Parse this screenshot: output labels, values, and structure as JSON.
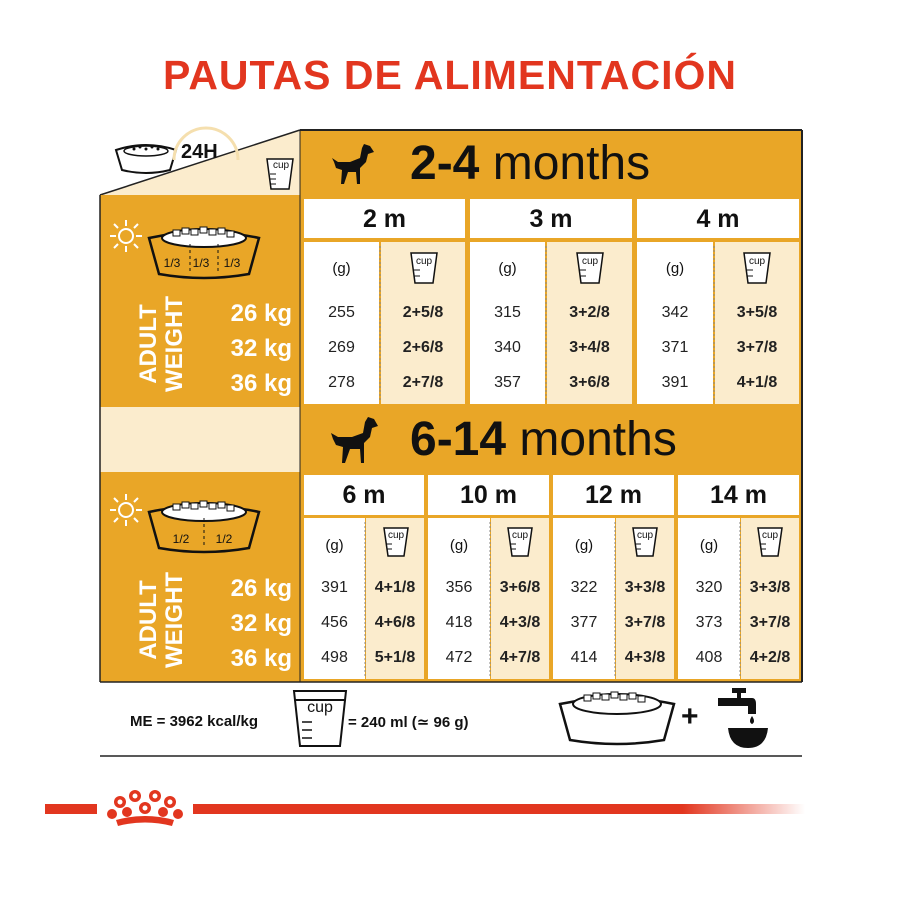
{
  "title": "PAUTAS DE ALIMENTACIÓN",
  "header_24h": "24H",
  "cup_word": "cup",
  "colors": {
    "orange": "#e9a627",
    "cream": "#fbeccd",
    "red": "#e2361f",
    "dark": "#1a1a1a"
  },
  "section1": {
    "range_number": "2-4",
    "range_word": "months",
    "fractions": [
      "1/3",
      "1/3",
      "1/3"
    ],
    "adult_label": [
      "ADULT",
      "WEIGHT"
    ],
    "weights": [
      "26 kg",
      "32 kg",
      "36 kg"
    ],
    "unit_g": "(g)",
    "columns": [
      {
        "month": "2 m",
        "grams": [
          "255",
          "269",
          "278"
        ],
        "cups": [
          "2+5/8",
          "2+6/8",
          "2+7/8"
        ]
      },
      {
        "month": "3 m",
        "grams": [
          "315",
          "340",
          "357"
        ],
        "cups": [
          "3+2/8",
          "3+4/8",
          "3+6/8"
        ]
      },
      {
        "month": "4 m",
        "grams": [
          "342",
          "371",
          "391"
        ],
        "cups": [
          "3+5/8",
          "3+7/8",
          "4+1/8"
        ]
      }
    ]
  },
  "section2": {
    "range_number": "6-14",
    "range_word": "months",
    "fractions": [
      "1/2",
      "1/2"
    ],
    "adult_label": [
      "ADULT",
      "WEIGHT"
    ],
    "weights": [
      "26 kg",
      "32 kg",
      "36 kg"
    ],
    "unit_g": "(g)",
    "columns": [
      {
        "month": "6 m",
        "grams": [
          "391",
          "456",
          "498"
        ],
        "cups": [
          "4+1/8",
          "4+6/8",
          "5+1/8"
        ]
      },
      {
        "month": "10 m",
        "grams": [
          "356",
          "418",
          "472"
        ],
        "cups": [
          "3+6/8",
          "4+3/8",
          "4+7/8"
        ]
      },
      {
        "month": "12 m",
        "grams": [
          "322",
          "377",
          "414"
        ],
        "cups": [
          "3+3/8",
          "3+7/8",
          "4+3/8"
        ]
      },
      {
        "month": "14 m",
        "grams": [
          "320",
          "373",
          "408"
        ],
        "cups": [
          "3+3/8",
          "3+7/8",
          "4+2/8"
        ]
      }
    ]
  },
  "footer": {
    "me_text": "ME = 3962 kcal/kg",
    "cup_equivalence": "= 240 ml (≃ 96 g)",
    "plus": "+"
  },
  "icons": [
    "bowl-icon",
    "clock-icon",
    "cup-icon",
    "sun-icon",
    "moon-icon",
    "dog-icon",
    "water-tap-icon",
    "crown-logo-icon"
  ]
}
